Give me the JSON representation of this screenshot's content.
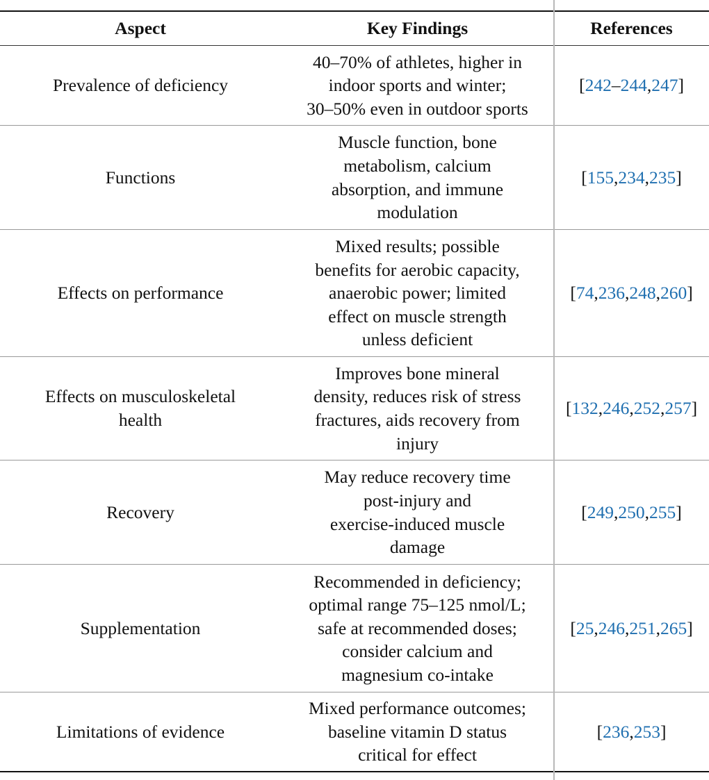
{
  "table": {
    "header": [
      "Aspect",
      "Key Findings",
      "References"
    ],
    "link_color": "#1f6fb0",
    "rows": [
      {
        "aspect": [
          "Prevalence of deficiency"
        ],
        "findings": [
          "40–70% of athletes, higher in",
          "indoor sports and winter;",
          "30–50% even in outdoor sports"
        ],
        "references": [
          "[",
          "242",
          "–",
          "244",
          ",",
          "247",
          "]"
        ]
      },
      {
        "aspect": [
          "Functions"
        ],
        "findings": [
          "Muscle function, bone",
          "metabolism, calcium",
          "absorption, and immune",
          "modulation"
        ],
        "references": [
          "[",
          "155",
          ",",
          "234",
          ",",
          "235",
          "]"
        ]
      },
      {
        "aspect": [
          "Effects on performance"
        ],
        "findings": [
          "Mixed results; possible",
          "benefits for aerobic capacity,",
          "anaerobic power; limited",
          "effect on muscle strength",
          "unless deficient"
        ],
        "references": [
          "[",
          "74",
          ",",
          "236",
          ",",
          "248",
          ",",
          "260",
          "]"
        ]
      },
      {
        "aspect": [
          "Effects on musculoskeletal",
          "health"
        ],
        "findings": [
          "Improves bone mineral",
          "density, reduces risk of stress",
          "fractures, aids recovery from",
          "injury"
        ],
        "references": [
          "[",
          "132",
          ",",
          "246",
          ",",
          "252",
          ",",
          "257",
          "]"
        ]
      },
      {
        "aspect": [
          "Recovery"
        ],
        "findings": [
          "May reduce recovery time",
          "post-injury and",
          "exercise-induced muscle",
          "damage"
        ],
        "references": [
          "[",
          "249",
          ",",
          "250",
          ",",
          "255",
          "]"
        ]
      },
      {
        "aspect": [
          "Supplementation"
        ],
        "findings": [
          "Recommended in deficiency;",
          "optimal range 75–125 nmol/L;",
          "safe at recommended doses;",
          "consider calcium and",
          "magnesium co-intake"
        ],
        "references": [
          "[",
          "25",
          ",",
          "246",
          ",",
          "251",
          ",",
          "265",
          "]"
        ]
      },
      {
        "aspect": [
          "Limitations of evidence"
        ],
        "findings": [
          "Mixed performance outcomes;",
          "baseline vitamin D status",
          "critical for effect"
        ],
        "references": [
          "[",
          "236",
          ",",
          "253",
          "]"
        ]
      }
    ]
  }
}
